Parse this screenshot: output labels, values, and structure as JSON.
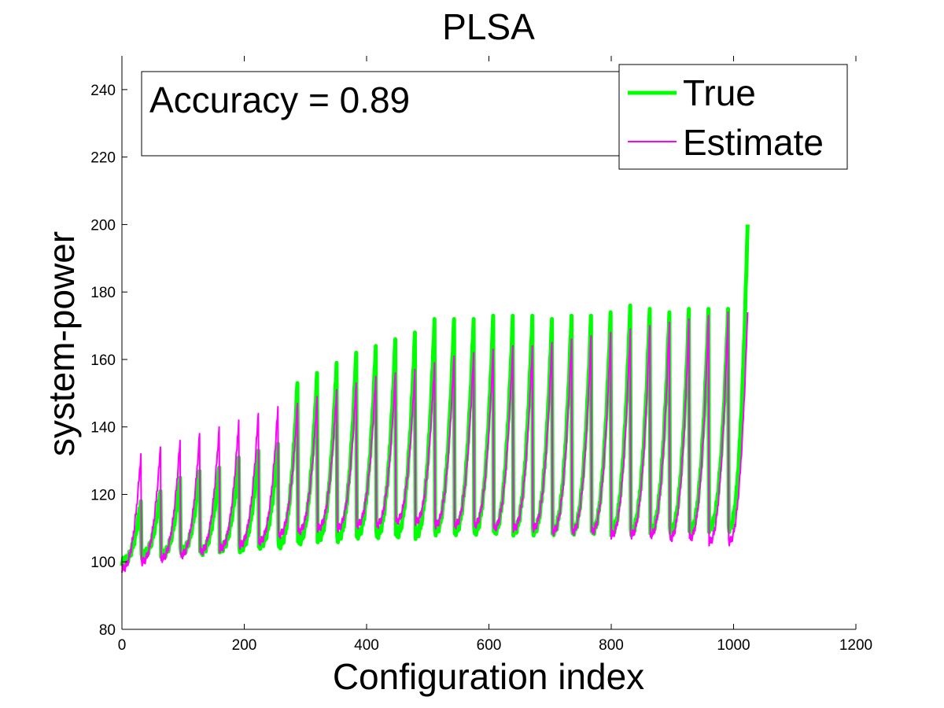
{
  "chart_data": {
    "type": "line",
    "title": "PLSA",
    "xlabel": "Configuration index",
    "ylabel": "system-power",
    "xlim": [
      0,
      1200
    ],
    "ylim": [
      80,
      250
    ],
    "xticks": [
      0,
      200,
      400,
      600,
      800,
      1000,
      1200
    ],
    "yticks": [
      80,
      100,
      120,
      140,
      160,
      180,
      200,
      220,
      240
    ],
    "grid": false,
    "legend_position": "top-right",
    "annotation": "Accuracy = 0.89",
    "series": [
      {
        "name": "True",
        "color": "#00ff00",
        "segment_length": 32,
        "segments": [
          {
            "start": 0,
            "min": 100,
            "max": 118
          },
          {
            "start": 32,
            "min": 102,
            "max": 121
          },
          {
            "start": 64,
            "min": 102,
            "max": 125
          },
          {
            "start": 96,
            "min": 103,
            "max": 127
          },
          {
            "start": 128,
            "min": 103,
            "max": 128
          },
          {
            "start": 160,
            "min": 104,
            "max": 131
          },
          {
            "start": 192,
            "min": 104,
            "max": 133
          },
          {
            "start": 224,
            "min": 105,
            "max": 135
          },
          {
            "start": 256,
            "min": 105,
            "max": 153
          },
          {
            "start": 288,
            "min": 106,
            "max": 156
          },
          {
            "start": 320,
            "min": 107,
            "max": 159
          },
          {
            "start": 352,
            "min": 107,
            "max": 162
          },
          {
            "start": 384,
            "min": 108,
            "max": 164
          },
          {
            "start": 416,
            "min": 108,
            "max": 166
          },
          {
            "start": 448,
            "min": 108,
            "max": 168
          },
          {
            "start": 480,
            "min": 108,
            "max": 172
          },
          {
            "start": 512,
            "min": 109,
            "max": 172
          },
          {
            "start": 544,
            "min": 109,
            "max": 172
          },
          {
            "start": 576,
            "min": 109,
            "max": 173
          },
          {
            "start": 608,
            "min": 109,
            "max": 173
          },
          {
            "start": 640,
            "min": 109,
            "max": 173
          },
          {
            "start": 672,
            "min": 109,
            "max": 172
          },
          {
            "start": 704,
            "min": 109,
            "max": 173
          },
          {
            "start": 736,
            "min": 109,
            "max": 173
          },
          {
            "start": 768,
            "min": 109,
            "max": 174
          },
          {
            "start": 800,
            "min": 109,
            "max": 176
          },
          {
            "start": 832,
            "min": 109,
            "max": 175
          },
          {
            "start": 864,
            "min": 109,
            "max": 174
          },
          {
            "start": 896,
            "min": 109,
            "max": 175
          },
          {
            "start": 928,
            "min": 109,
            "max": 175
          },
          {
            "start": 960,
            "min": 110,
            "max": 175
          },
          {
            "start": 992,
            "min": 110,
            "max": 200
          }
        ]
      },
      {
        "name": "Estimate",
        "color": "#ff00ff",
        "segment_length": 32,
        "segments": [
          {
            "start": 0,
            "min": 98,
            "max": 132
          },
          {
            "start": 32,
            "min": 100,
            "max": 134
          },
          {
            "start": 64,
            "min": 101,
            "max": 136
          },
          {
            "start": 96,
            "min": 102,
            "max": 138
          },
          {
            "start": 128,
            "min": 103,
            "max": 140
          },
          {
            "start": 160,
            "min": 104,
            "max": 142
          },
          {
            "start": 192,
            "min": 105,
            "max": 144
          },
          {
            "start": 224,
            "min": 106,
            "max": 146
          },
          {
            "start": 256,
            "min": 108,
            "max": 147
          },
          {
            "start": 288,
            "min": 109,
            "max": 149
          },
          {
            "start": 320,
            "min": 110,
            "max": 151
          },
          {
            "start": 352,
            "min": 110,
            "max": 153
          },
          {
            "start": 384,
            "min": 111,
            "max": 155
          },
          {
            "start": 416,
            "min": 111,
            "max": 156
          },
          {
            "start": 448,
            "min": 112,
            "max": 157
          },
          {
            "start": 480,
            "min": 112,
            "max": 159
          },
          {
            "start": 512,
            "min": 111,
            "max": 161
          },
          {
            "start": 544,
            "min": 111,
            "max": 162
          },
          {
            "start": 576,
            "min": 111,
            "max": 163
          },
          {
            "start": 608,
            "min": 110,
            "max": 164
          },
          {
            "start": 640,
            "min": 110,
            "max": 164
          },
          {
            "start": 672,
            "min": 110,
            "max": 165
          },
          {
            "start": 704,
            "min": 109,
            "max": 166
          },
          {
            "start": 736,
            "min": 109,
            "max": 167
          },
          {
            "start": 768,
            "min": 109,
            "max": 168
          },
          {
            "start": 800,
            "min": 108,
            "max": 169
          },
          {
            "start": 832,
            "min": 108,
            "max": 170
          },
          {
            "start": 864,
            "min": 108,
            "max": 171
          },
          {
            "start": 896,
            "min": 107,
            "max": 172
          },
          {
            "start": 928,
            "min": 107,
            "max": 173
          },
          {
            "start": 960,
            "min": 106,
            "max": 174
          },
          {
            "start": 992,
            "min": 106,
            "max": 174
          }
        ]
      }
    ]
  }
}
